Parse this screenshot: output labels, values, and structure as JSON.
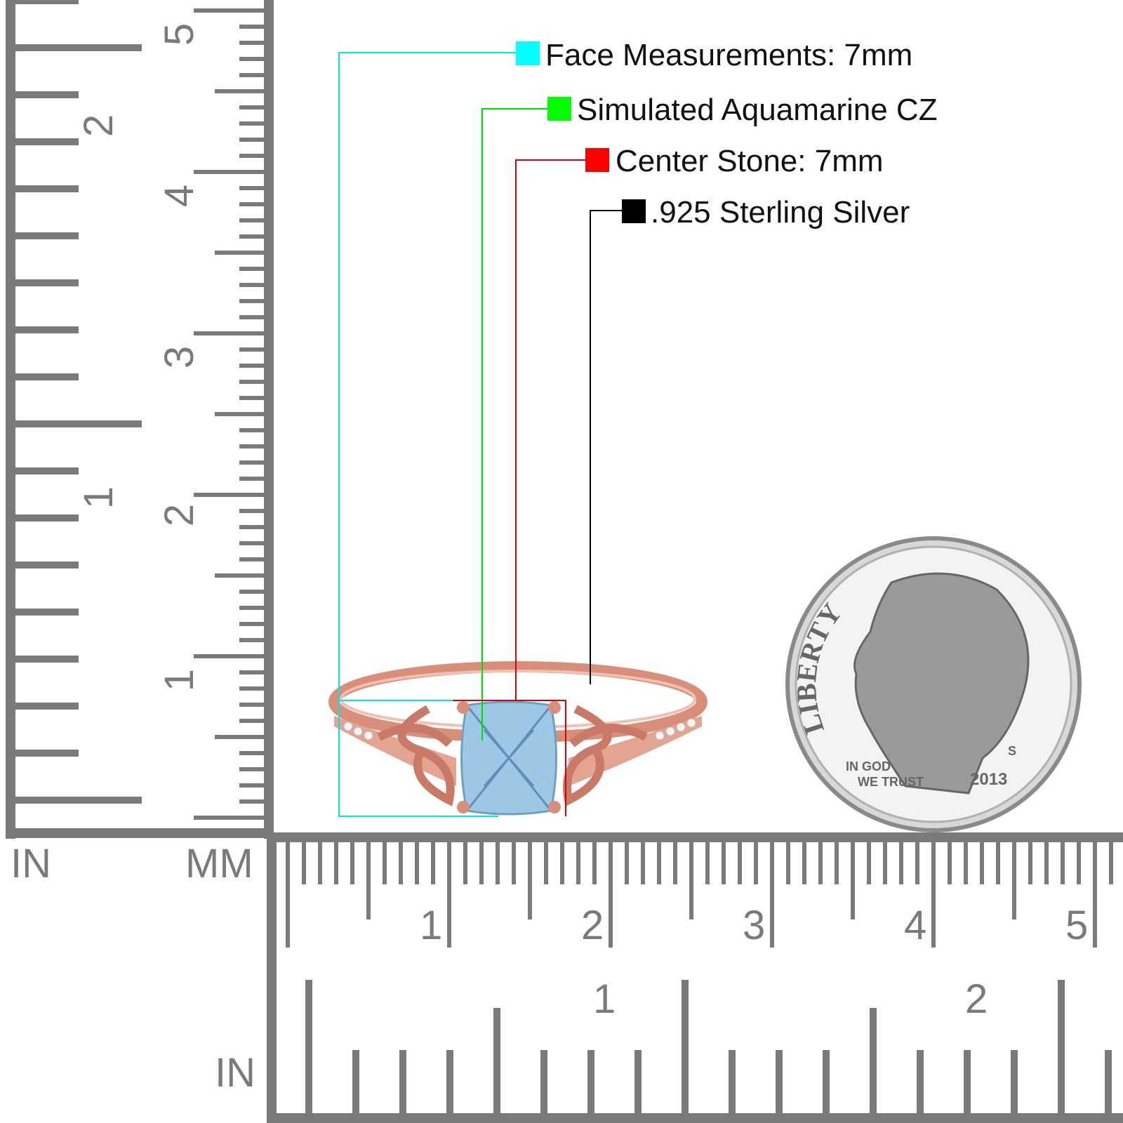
{
  "legend": [
    {
      "label": "Face Measurements: 7mm",
      "color": "#00ffff"
    },
    {
      "label": "Simulated Aquamarine CZ",
      "color": "#00ff00"
    },
    {
      "label": "Center Stone: 7mm",
      "color": "#ff0000"
    },
    {
      "label": ".925 Sterling Silver",
      "color": "#000000"
    }
  ],
  "rulers": {
    "color": "#7a7a7a",
    "vertical": {
      "inch_unit": "IN",
      "mm_unit": "MM",
      "inch_labels": [
        "1",
        "2"
      ],
      "cm_labels": [
        "1",
        "2",
        "3",
        "4",
        "5"
      ]
    },
    "horizontal": {
      "inch_unit": "IN",
      "cm_labels": [
        "1",
        "2",
        "3",
        "4",
        "5"
      ],
      "inch_labels": [
        "1",
        "2"
      ]
    }
  },
  "ring": {
    "metal_color": "#e0a08c",
    "stone_color": "#9cc8e6",
    "stone_shape": "cushion",
    "motif": "celtic-knot"
  },
  "coin": {
    "type": "dime",
    "inscriptions": [
      "LIBERTY",
      "IN GOD WE TRUST",
      "2013",
      "S"
    ]
  }
}
